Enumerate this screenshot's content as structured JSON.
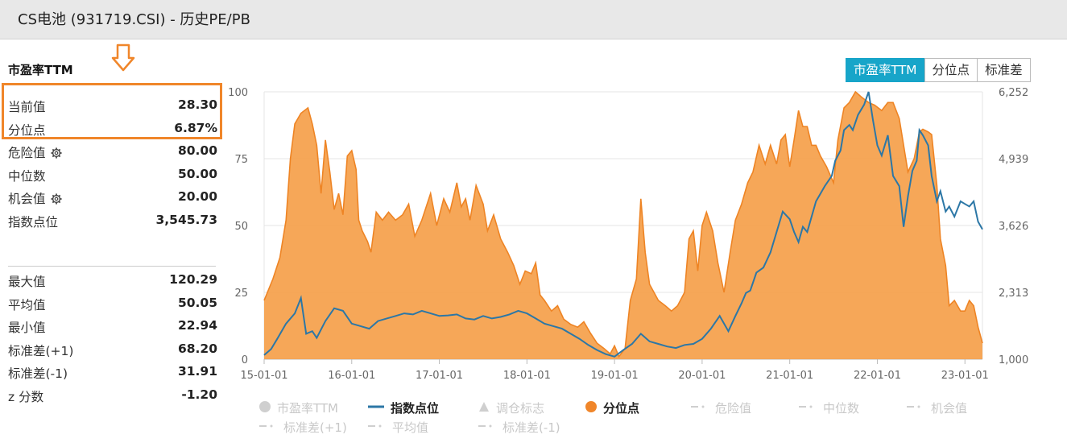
{
  "header": {
    "title": "CS电池 (931719.CSI) - 历史PE/PB"
  },
  "panel": {
    "title": "市盈率TTM",
    "current": [
      {
        "label": "当前值",
        "value": "28.30"
      },
      {
        "label": "分位点",
        "value": "6.87%"
      }
    ],
    "thresholds": [
      {
        "label": "危险值",
        "value": "80.00",
        "gear": true
      },
      {
        "label": "中位数",
        "value": "50.00",
        "gear": false
      },
      {
        "label": "机会值",
        "value": "20.00",
        "gear": true
      },
      {
        "label": "指数点位",
        "value": "3,545.73",
        "gear": false
      }
    ],
    "summary": [
      {
        "label": "最大值",
        "value": "120.29"
      },
      {
        "label": "平均值",
        "value": "50.05"
      },
      {
        "label": "最小值",
        "value": "22.94"
      },
      {
        "label": "标准差(+1)",
        "value": "68.20"
      },
      {
        "label": "标准差(-1)",
        "value": "31.91"
      },
      {
        "label": "z 分数",
        "value": "-1.20"
      }
    ]
  },
  "tabs": [
    {
      "label": "市盈率TTM",
      "active": true
    },
    {
      "label": "分位点",
      "active": false
    },
    {
      "label": "标准差",
      "active": false
    }
  ],
  "colors": {
    "area": "#f5a04a",
    "areaStroke": "#ee8424",
    "line": "#2c77a6",
    "accent": "#f0862a",
    "tabActive": "#17a5c9"
  },
  "chart_data": {
    "type": "area",
    "x_ticks": [
      "15-01-01",
      "16-01-01",
      "17-01-01",
      "18-01-01",
      "19-01-01",
      "20-01-01",
      "21-01-01",
      "22-01-01",
      "23-01-01"
    ],
    "x_range": [
      2015.0,
      2023.2
    ],
    "y_left": {
      "ticks": [
        "0",
        "25",
        "50",
        "75",
        "100"
      ],
      "range": [
        0,
        100
      ]
    },
    "y_right": {
      "ticks": [
        "1,000",
        "2,313",
        "3,626",
        "4,939",
        "6,252"
      ],
      "range": [
        1000,
        6252
      ]
    },
    "series": [
      {
        "name": "分位点",
        "axis": "left",
        "style": "area",
        "points": [
          [
            2015.0,
            22
          ],
          [
            2015.1,
            30
          ],
          [
            2015.18,
            38
          ],
          [
            2015.25,
            52
          ],
          [
            2015.3,
            75
          ],
          [
            2015.35,
            88
          ],
          [
            2015.42,
            92
          ],
          [
            2015.5,
            94
          ],
          [
            2015.55,
            88
          ],
          [
            2015.6,
            80
          ],
          [
            2015.65,
            62
          ],
          [
            2015.7,
            82
          ],
          [
            2015.75,
            70
          ],
          [
            2015.8,
            56
          ],
          [
            2015.85,
            62
          ],
          [
            2015.9,
            54
          ],
          [
            2015.95,
            76
          ],
          [
            2016.0,
            78
          ],
          [
            2016.05,
            71
          ],
          [
            2016.08,
            52
          ],
          [
            2016.12,
            48
          ],
          [
            2016.18,
            44
          ],
          [
            2016.22,
            40
          ],
          [
            2016.28,
            55
          ],
          [
            2016.35,
            52
          ],
          [
            2016.42,
            55
          ],
          [
            2016.5,
            52
          ],
          [
            2016.58,
            54
          ],
          [
            2016.65,
            58
          ],
          [
            2016.72,
            46
          ],
          [
            2016.8,
            52
          ],
          [
            2016.9,
            62
          ],
          [
            2016.97,
            50
          ],
          [
            2017.05,
            60
          ],
          [
            2017.12,
            55
          ],
          [
            2017.2,
            66
          ],
          [
            2017.25,
            57
          ],
          [
            2017.3,
            60
          ],
          [
            2017.35,
            52
          ],
          [
            2017.42,
            65
          ],
          [
            2017.5,
            58
          ],
          [
            2017.55,
            48
          ],
          [
            2017.62,
            54
          ],
          [
            2017.7,
            45
          ],
          [
            2017.78,
            40
          ],
          [
            2017.85,
            35
          ],
          [
            2017.92,
            28
          ],
          [
            2017.98,
            33
          ],
          [
            2018.05,
            32
          ],
          [
            2018.1,
            36
          ],
          [
            2018.15,
            24
          ],
          [
            2018.2,
            22
          ],
          [
            2018.28,
            18
          ],
          [
            2018.35,
            20
          ],
          [
            2018.42,
            15
          ],
          [
            2018.5,
            13
          ],
          [
            2018.58,
            12
          ],
          [
            2018.65,
            14
          ],
          [
            2018.72,
            10
          ],
          [
            2018.8,
            6
          ],
          [
            2018.88,
            4
          ],
          [
            2018.95,
            2
          ],
          [
            2019.0,
            5
          ],
          [
            2019.05,
            1
          ],
          [
            2019.12,
            4
          ],
          [
            2019.18,
            22
          ],
          [
            2019.25,
            30
          ],
          [
            2019.3,
            60
          ],
          [
            2019.35,
            40
          ],
          [
            2019.4,
            28
          ],
          [
            2019.45,
            25
          ],
          [
            2019.5,
            22
          ],
          [
            2019.58,
            20
          ],
          [
            2019.65,
            18
          ],
          [
            2019.72,
            20
          ],
          [
            2019.8,
            25
          ],
          [
            2019.85,
            45
          ],
          [
            2019.9,
            48
          ],
          [
            2019.95,
            33
          ],
          [
            2020.0,
            50
          ],
          [
            2020.05,
            55
          ],
          [
            2020.12,
            48
          ],
          [
            2020.18,
            36
          ],
          [
            2020.25,
            25
          ],
          [
            2020.32,
            40
          ],
          [
            2020.38,
            52
          ],
          [
            2020.45,
            58
          ],
          [
            2020.52,
            66
          ],
          [
            2020.58,
            70
          ],
          [
            2020.65,
            80
          ],
          [
            2020.72,
            73
          ],
          [
            2020.78,
            80
          ],
          [
            2020.85,
            73
          ],
          [
            2020.9,
            82
          ],
          [
            2020.95,
            84
          ],
          [
            2021.0,
            72
          ],
          [
            2021.05,
            82
          ],
          [
            2021.1,
            93
          ],
          [
            2021.15,
            87
          ],
          [
            2021.2,
            87
          ],
          [
            2021.25,
            80
          ],
          [
            2021.3,
            80
          ],
          [
            2021.35,
            76
          ],
          [
            2021.42,
            72
          ],
          [
            2021.5,
            66
          ],
          [
            2021.55,
            82
          ],
          [
            2021.62,
            94
          ],
          [
            2021.68,
            96
          ],
          [
            2021.75,
            100
          ],
          [
            2021.82,
            98
          ],
          [
            2021.9,
            96
          ],
          [
            2021.97,
            95
          ],
          [
            2022.05,
            93
          ],
          [
            2022.12,
            96
          ],
          [
            2022.18,
            96
          ],
          [
            2022.25,
            90
          ],
          [
            2022.3,
            80
          ],
          [
            2022.35,
            70
          ],
          [
            2022.42,
            75
          ],
          [
            2022.48,
            85
          ],
          [
            2022.52,
            86
          ],
          [
            2022.58,
            85
          ],
          [
            2022.62,
            84
          ],
          [
            2022.68,
            65
          ],
          [
            2022.72,
            45
          ],
          [
            2022.78,
            35
          ],
          [
            2022.82,
            20
          ],
          [
            2022.88,
            22
          ],
          [
            2022.95,
            18
          ],
          [
            2023.0,
            18
          ],
          [
            2023.05,
            22
          ],
          [
            2023.1,
            20
          ],
          [
            2023.15,
            12
          ],
          [
            2023.2,
            6
          ]
        ]
      },
      {
        "name": "指数点位",
        "axis": "right",
        "style": "line",
        "points": [
          [
            2015.0,
            1080
          ],
          [
            2015.08,
            1200
          ],
          [
            2015.15,
            1400
          ],
          [
            2015.25,
            1700
          ],
          [
            2015.35,
            1900
          ],
          [
            2015.42,
            2200
          ],
          [
            2015.48,
            1500
          ],
          [
            2015.55,
            1550
          ],
          [
            2015.6,
            1420
          ],
          [
            2015.7,
            1750
          ],
          [
            2015.8,
            2000
          ],
          [
            2015.9,
            1950
          ],
          [
            2016.0,
            1700
          ],
          [
            2016.1,
            1650
          ],
          [
            2016.2,
            1600
          ],
          [
            2016.3,
            1750
          ],
          [
            2016.4,
            1800
          ],
          [
            2016.5,
            1850
          ],
          [
            2016.6,
            1900
          ],
          [
            2016.7,
            1880
          ],
          [
            2016.8,
            1950
          ],
          [
            2016.9,
            1900
          ],
          [
            2017.0,
            1850
          ],
          [
            2017.1,
            1860
          ],
          [
            2017.2,
            1880
          ],
          [
            2017.3,
            1800
          ],
          [
            2017.4,
            1780
          ],
          [
            2017.5,
            1850
          ],
          [
            2017.6,
            1800
          ],
          [
            2017.7,
            1830
          ],
          [
            2017.8,
            1880
          ],
          [
            2017.9,
            1950
          ],
          [
            2018.0,
            1900
          ],
          [
            2018.1,
            1800
          ],
          [
            2018.2,
            1700
          ],
          [
            2018.3,
            1650
          ],
          [
            2018.4,
            1600
          ],
          [
            2018.5,
            1500
          ],
          [
            2018.6,
            1400
          ],
          [
            2018.7,
            1280
          ],
          [
            2018.8,
            1180
          ],
          [
            2018.9,
            1100
          ],
          [
            2019.0,
            1050
          ],
          [
            2019.1,
            1180
          ],
          [
            2019.2,
            1300
          ],
          [
            2019.3,
            1500
          ],
          [
            2019.4,
            1350
          ],
          [
            2019.5,
            1300
          ],
          [
            2019.6,
            1250
          ],
          [
            2019.7,
            1220
          ],
          [
            2019.8,
            1280
          ],
          [
            2019.9,
            1300
          ],
          [
            2020.0,
            1400
          ],
          [
            2020.1,
            1600
          ],
          [
            2020.2,
            1850
          ],
          [
            2020.25,
            1700
          ],
          [
            2020.3,
            1550
          ],
          [
            2020.38,
            1850
          ],
          [
            2020.45,
            2100
          ],
          [
            2020.5,
            2300
          ],
          [
            2020.55,
            2350
          ],
          [
            2020.62,
            2700
          ],
          [
            2020.7,
            2800
          ],
          [
            2020.78,
            3100
          ],
          [
            2020.85,
            3500
          ],
          [
            2020.92,
            3900
          ],
          [
            2021.0,
            3750
          ],
          [
            2021.05,
            3500
          ],
          [
            2021.1,
            3300
          ],
          [
            2021.15,
            3600
          ],
          [
            2021.2,
            3500
          ],
          [
            2021.3,
            4100
          ],
          [
            2021.4,
            4400
          ],
          [
            2021.48,
            4600
          ],
          [
            2021.52,
            4900
          ],
          [
            2021.58,
            5100
          ],
          [
            2021.62,
            5500
          ],
          [
            2021.68,
            5600
          ],
          [
            2021.72,
            5500
          ],
          [
            2021.78,
            5800
          ],
          [
            2021.85,
            6000
          ],
          [
            2021.9,
            6252
          ],
          [
            2021.95,
            5700
          ],
          [
            2022.0,
            5200
          ],
          [
            2022.05,
            5000
          ],
          [
            2022.12,
            5400
          ],
          [
            2022.18,
            4600
          ],
          [
            2022.25,
            4400
          ],
          [
            2022.3,
            3600
          ],
          [
            2022.35,
            4200
          ],
          [
            2022.4,
            4700
          ],
          [
            2022.45,
            4900
          ],
          [
            2022.48,
            5500
          ],
          [
            2022.52,
            5400
          ],
          [
            2022.58,
            5200
          ],
          [
            2022.62,
            4600
          ],
          [
            2022.68,
            4100
          ],
          [
            2022.72,
            4300
          ],
          [
            2022.78,
            3900
          ],
          [
            2022.82,
            4000
          ],
          [
            2022.88,
            3800
          ],
          [
            2022.95,
            4100
          ],
          [
            2023.0,
            4050
          ],
          [
            2023.05,
            4000
          ],
          [
            2023.1,
            4100
          ],
          [
            2023.15,
            3700
          ],
          [
            2023.2,
            3550
          ]
        ]
      }
    ],
    "legend": [
      {
        "name": "市盈率TTM",
        "symbol": "circle",
        "active": false
      },
      {
        "name": "指数点位",
        "symbol": "line",
        "active": true
      },
      {
        "name": "调仓标志",
        "symbol": "triangle",
        "active": false
      },
      {
        "name": "分位点",
        "symbol": "circle",
        "active": true
      },
      {
        "name": "危险值",
        "symbol": "dash",
        "active": false
      },
      {
        "name": "中位数",
        "symbol": "dash",
        "active": false
      },
      {
        "name": "机会值",
        "symbol": "dash",
        "active": false
      },
      {
        "name": "标准差(+1)",
        "symbol": "dash",
        "active": false
      },
      {
        "name": "平均值",
        "symbol": "dash",
        "active": false
      },
      {
        "name": "标准差(-1)",
        "symbol": "dash",
        "active": false
      }
    ]
  }
}
